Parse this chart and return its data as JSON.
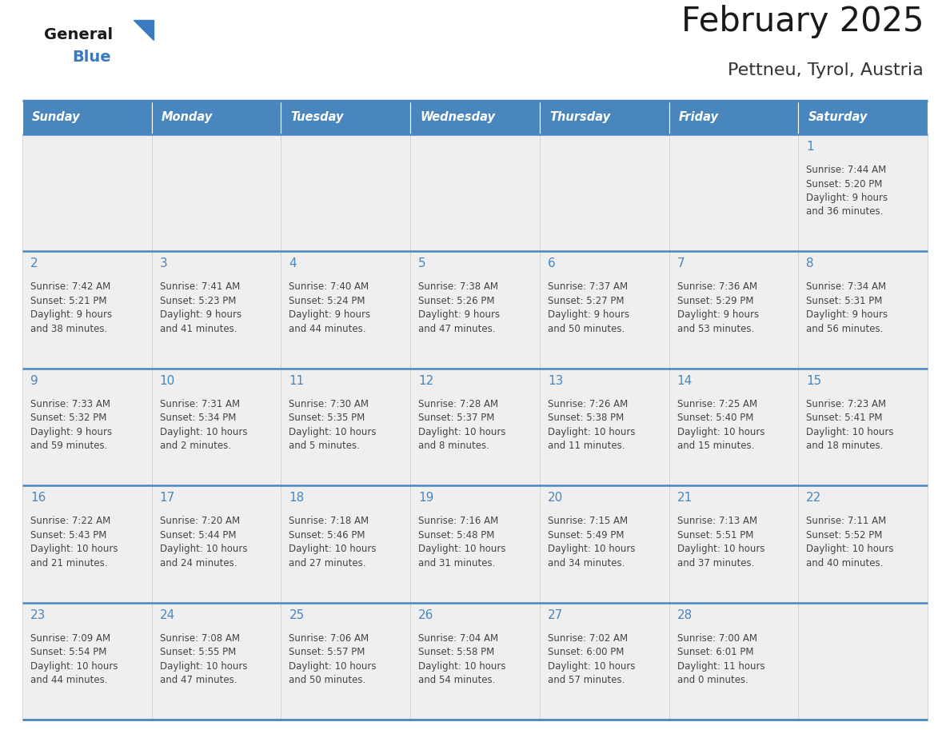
{
  "title": "February 2025",
  "subtitle": "Pettneu, Tyrol, Austria",
  "days_of_week": [
    "Sunday",
    "Monday",
    "Tuesday",
    "Wednesday",
    "Thursday",
    "Friday",
    "Saturday"
  ],
  "header_bg": "#4a86be",
  "header_text": "#ffffff",
  "cell_bg": "#efefef",
  "border_color": "#4a86be",
  "day_number_color": "#4a86be",
  "text_color": "#444444",
  "title_color": "#1a1a1a",
  "subtitle_color": "#333333",
  "logo_general_color": "#1a1a1a",
  "logo_blue_color": "#3a7abf",
  "logo_triangle_color": "#3a7abf",
  "calendar_data": [
    [
      {
        "day": null,
        "sunrise": null,
        "sunset": null,
        "daylight": null
      },
      {
        "day": null,
        "sunrise": null,
        "sunset": null,
        "daylight": null
      },
      {
        "day": null,
        "sunrise": null,
        "sunset": null,
        "daylight": null
      },
      {
        "day": null,
        "sunrise": null,
        "sunset": null,
        "daylight": null
      },
      {
        "day": null,
        "sunrise": null,
        "sunset": null,
        "daylight": null
      },
      {
        "day": null,
        "sunrise": null,
        "sunset": null,
        "daylight": null
      },
      {
        "day": 1,
        "sunrise": "7:44 AM",
        "sunset": "5:20 PM",
        "daylight": "9 hours\nand 36 minutes."
      }
    ],
    [
      {
        "day": 2,
        "sunrise": "7:42 AM",
        "sunset": "5:21 PM",
        "daylight": "9 hours\nand 38 minutes."
      },
      {
        "day": 3,
        "sunrise": "7:41 AM",
        "sunset": "5:23 PM",
        "daylight": "9 hours\nand 41 minutes."
      },
      {
        "day": 4,
        "sunrise": "7:40 AM",
        "sunset": "5:24 PM",
        "daylight": "9 hours\nand 44 minutes."
      },
      {
        "day": 5,
        "sunrise": "7:38 AM",
        "sunset": "5:26 PM",
        "daylight": "9 hours\nand 47 minutes."
      },
      {
        "day": 6,
        "sunrise": "7:37 AM",
        "sunset": "5:27 PM",
        "daylight": "9 hours\nand 50 minutes."
      },
      {
        "day": 7,
        "sunrise": "7:36 AM",
        "sunset": "5:29 PM",
        "daylight": "9 hours\nand 53 minutes."
      },
      {
        "day": 8,
        "sunrise": "7:34 AM",
        "sunset": "5:31 PM",
        "daylight": "9 hours\nand 56 minutes."
      }
    ],
    [
      {
        "day": 9,
        "sunrise": "7:33 AM",
        "sunset": "5:32 PM",
        "daylight": "9 hours\nand 59 minutes."
      },
      {
        "day": 10,
        "sunrise": "7:31 AM",
        "sunset": "5:34 PM",
        "daylight": "10 hours\nand 2 minutes."
      },
      {
        "day": 11,
        "sunrise": "7:30 AM",
        "sunset": "5:35 PM",
        "daylight": "10 hours\nand 5 minutes."
      },
      {
        "day": 12,
        "sunrise": "7:28 AM",
        "sunset": "5:37 PM",
        "daylight": "10 hours\nand 8 minutes."
      },
      {
        "day": 13,
        "sunrise": "7:26 AM",
        "sunset": "5:38 PM",
        "daylight": "10 hours\nand 11 minutes."
      },
      {
        "day": 14,
        "sunrise": "7:25 AM",
        "sunset": "5:40 PM",
        "daylight": "10 hours\nand 15 minutes."
      },
      {
        "day": 15,
        "sunrise": "7:23 AM",
        "sunset": "5:41 PM",
        "daylight": "10 hours\nand 18 minutes."
      }
    ],
    [
      {
        "day": 16,
        "sunrise": "7:22 AM",
        "sunset": "5:43 PM",
        "daylight": "10 hours\nand 21 minutes."
      },
      {
        "day": 17,
        "sunrise": "7:20 AM",
        "sunset": "5:44 PM",
        "daylight": "10 hours\nand 24 minutes."
      },
      {
        "day": 18,
        "sunrise": "7:18 AM",
        "sunset": "5:46 PM",
        "daylight": "10 hours\nand 27 minutes."
      },
      {
        "day": 19,
        "sunrise": "7:16 AM",
        "sunset": "5:48 PM",
        "daylight": "10 hours\nand 31 minutes."
      },
      {
        "day": 20,
        "sunrise": "7:15 AM",
        "sunset": "5:49 PM",
        "daylight": "10 hours\nand 34 minutes."
      },
      {
        "day": 21,
        "sunrise": "7:13 AM",
        "sunset": "5:51 PM",
        "daylight": "10 hours\nand 37 minutes."
      },
      {
        "day": 22,
        "sunrise": "7:11 AM",
        "sunset": "5:52 PM",
        "daylight": "10 hours\nand 40 minutes."
      }
    ],
    [
      {
        "day": 23,
        "sunrise": "7:09 AM",
        "sunset": "5:54 PM",
        "daylight": "10 hours\nand 44 minutes."
      },
      {
        "day": 24,
        "sunrise": "7:08 AM",
        "sunset": "5:55 PM",
        "daylight": "10 hours\nand 47 minutes."
      },
      {
        "day": 25,
        "sunrise": "7:06 AM",
        "sunset": "5:57 PM",
        "daylight": "10 hours\nand 50 minutes."
      },
      {
        "day": 26,
        "sunrise": "7:04 AM",
        "sunset": "5:58 PM",
        "daylight": "10 hours\nand 54 minutes."
      },
      {
        "day": 27,
        "sunrise": "7:02 AM",
        "sunset": "6:00 PM",
        "daylight": "10 hours\nand 57 minutes."
      },
      {
        "day": 28,
        "sunrise": "7:00 AM",
        "sunset": "6:01 PM",
        "daylight": "11 hours\nand 0 minutes."
      },
      {
        "day": null,
        "sunrise": null,
        "sunset": null,
        "daylight": null
      }
    ]
  ]
}
